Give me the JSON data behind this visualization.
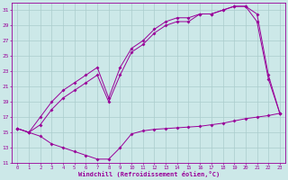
{
  "xlabel": "Windchill (Refroidissement éolien,°C)",
  "bg_color": "#cce8e8",
  "line_color": "#990099",
  "grid_color": "#aacccc",
  "xlim": [
    -0.5,
    23.5
  ],
  "ylim": [
    11,
    32
  ],
  "xticks": [
    0,
    1,
    2,
    3,
    4,
    5,
    6,
    7,
    8,
    9,
    10,
    11,
    12,
    13,
    14,
    15,
    16,
    17,
    18,
    19,
    20,
    21,
    22,
    23
  ],
  "yticks": [
    11,
    13,
    15,
    17,
    19,
    21,
    23,
    25,
    27,
    29,
    31
  ],
  "s1_x": [
    0,
    1,
    2,
    3,
    4,
    5,
    6,
    7,
    8,
    9,
    10,
    11,
    12,
    13,
    14,
    15,
    16,
    17,
    18,
    19,
    20,
    21,
    22,
    23
  ],
  "s1_y": [
    15.5,
    15.0,
    14.5,
    13.5,
    13.0,
    12.5,
    12.0,
    11.5,
    11.5,
    13.0,
    14.8,
    15.2,
    15.4,
    15.5,
    15.6,
    15.7,
    15.8,
    16.0,
    16.2,
    16.5,
    16.8,
    17.0,
    17.2,
    17.5
  ],
  "s2_x": [
    0,
    1,
    2,
    3,
    4,
    5,
    6,
    7,
    8,
    9,
    10,
    11,
    12,
    13,
    14,
    15,
    16,
    17,
    18,
    19,
    20,
    21,
    22,
    23
  ],
  "s2_y": [
    15.5,
    15.0,
    16.0,
    18.0,
    19.5,
    20.5,
    21.5,
    22.5,
    19.0,
    22.5,
    25.5,
    26.5,
    28.0,
    29.0,
    29.5,
    29.5,
    30.5,
    30.5,
    31.0,
    31.5,
    31.5,
    29.5,
    22.0,
    17.5
  ],
  "s3_x": [
    0,
    1,
    2,
    3,
    4,
    5,
    6,
    7,
    8,
    9,
    10,
    11,
    12,
    13,
    14,
    15,
    16,
    17,
    18,
    19,
    20,
    21,
    22,
    23
  ],
  "s3_y": [
    15.5,
    15.0,
    17.0,
    19.0,
    20.5,
    21.5,
    22.5,
    23.5,
    19.5,
    23.5,
    26.0,
    27.0,
    28.5,
    29.5,
    30.0,
    30.0,
    30.5,
    30.5,
    31.0,
    31.5,
    31.5,
    30.5,
    22.5,
    17.5
  ]
}
